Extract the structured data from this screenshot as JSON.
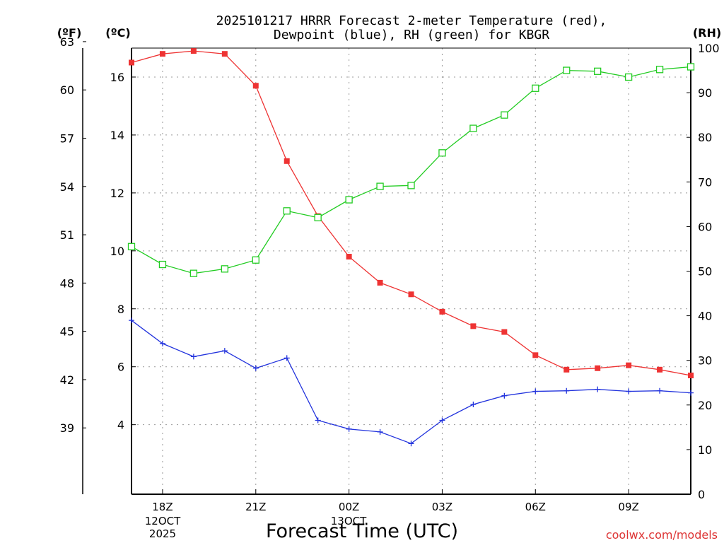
{
  "title_lines": [
    "2025101217 HRRR Forecast 2-meter Temperature (red),",
    "Dewpoint (blue), RH (green) for KBGR"
  ],
  "x_axis": {
    "label": "Forecast Time (UTC)",
    "ticks": [
      "18Z",
      "21Z",
      "00Z",
      "03Z",
      "06Z",
      "09Z"
    ],
    "date_labels": [
      {
        "lines": [
          "12OCT",
          "2025"
        ]
      },
      {
        "lines": [
          "13OCT"
        ]
      }
    ]
  },
  "axis_units": {
    "fahrenheit": "(ºF)",
    "celsius": "(ºC)",
    "rh": "(RH)"
  },
  "credit": "coolwx.com/models",
  "colors": {
    "temperature": "#ee3333",
    "dewpoint": "#2233dd",
    "rh": "#22cc22",
    "grid": "#999999"
  },
  "chart_data": {
    "type": "line",
    "x": [
      "17Z",
      "18Z",
      "19Z",
      "20Z",
      "21Z",
      "22Z",
      "23Z",
      "00Z",
      "01Z",
      "02Z",
      "03Z",
      "04Z",
      "05Z",
      "06Z",
      "07Z",
      "08Z",
      "09Z",
      "10Z",
      "11Z"
    ],
    "x_ticks_labeled": [
      "18Z",
      "21Z",
      "00Z",
      "03Z",
      "06Z",
      "09Z"
    ],
    "xlabel": "Forecast Time (UTC)",
    "title": "2025101217 HRRR Forecast 2-meter Temperature (red), Dewpoint (blue), RH (green) for KBGR",
    "celsius_axis": {
      "label": "(ºC)",
      "range": [
        1.6,
        17.0
      ],
      "ticks": [
        4,
        6,
        8,
        10,
        12,
        14,
        16
      ]
    },
    "fahrenheit_axis": {
      "label": "(ºF)",
      "ticks": [
        39,
        42,
        45,
        48,
        51,
        54,
        57,
        60,
        63
      ]
    },
    "rh_axis": {
      "label": "(RH)",
      "range": [
        0,
        100
      ],
      "ticks": [
        0,
        10,
        20,
        30,
        40,
        50,
        60,
        70,
        80,
        90,
        100
      ]
    },
    "series": [
      {
        "name": "Temperature",
        "color": "red",
        "axis": "celsius",
        "marker": "filled-square",
        "values": [
          16.5,
          16.8,
          16.9,
          16.8,
          15.7,
          13.1,
          11.2,
          9.8,
          8.9,
          8.5,
          7.9,
          7.4,
          7.2,
          6.4,
          5.9,
          5.95,
          6.05,
          5.9,
          5.7
        ]
      },
      {
        "name": "Dewpoint",
        "color": "blue",
        "axis": "celsius",
        "marker": "plus",
        "values": [
          7.6,
          6.8,
          6.35,
          6.55,
          5.95,
          6.3,
          4.15,
          3.85,
          3.75,
          3.35,
          4.15,
          4.7,
          5.0,
          5.15,
          5.17,
          5.22,
          5.15,
          5.17,
          5.1
        ]
      },
      {
        "name": "RH",
        "color": "green",
        "axis": "rh",
        "marker": "open-square",
        "values": [
          55.5,
          51.5,
          49.5,
          50.5,
          52.5,
          63.5,
          62.0,
          66.0,
          69.0,
          69.2,
          76.5,
          82.0,
          85.0,
          91.0,
          95.0,
          94.8,
          93.5,
          95.2,
          95.8
        ]
      }
    ]
  }
}
